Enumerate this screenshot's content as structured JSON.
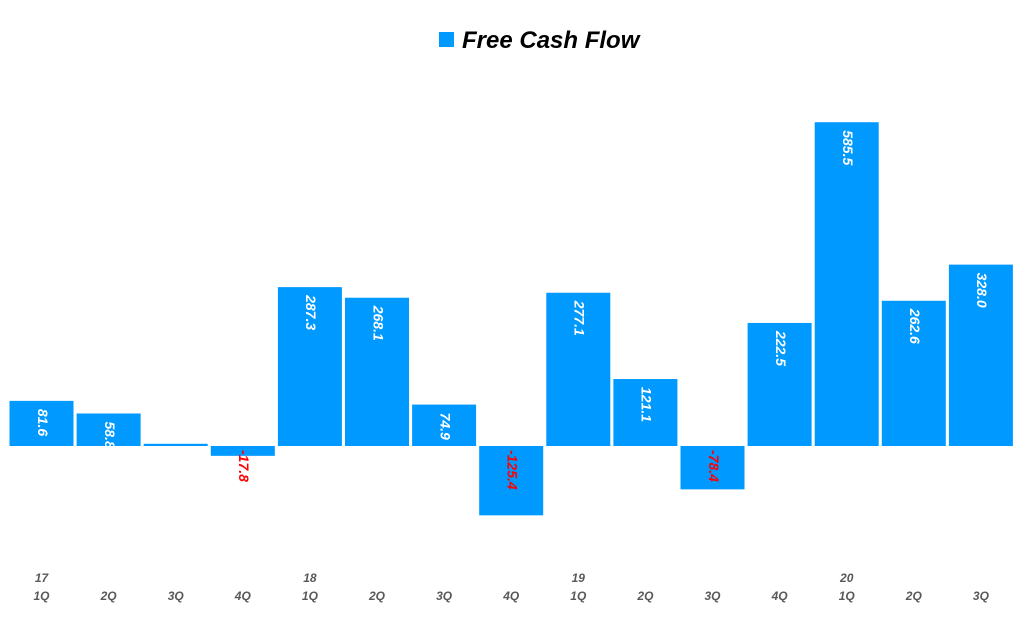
{
  "chart_data": {
    "type": "bar",
    "title": "",
    "legend": {
      "entries": [
        "Free Cash Flow"
      ],
      "placement": "top-center"
    },
    "series": [
      {
        "name": "Free Cash Flow",
        "values": [
          81.6,
          58.8,
          4,
          -17.8,
          287.3,
          268.1,
          74.9,
          -125.4,
          277.1,
          121.1,
          -78.4,
          222.5,
          585.5,
          262.6,
          328.0
        ]
      }
    ],
    "value_labels": [
      "81.6",
      "58.8",
      "4",
      "-17.8",
      "287.3",
      "268.1",
      "74.9",
      "-125.4",
      "277.1",
      "121.1",
      "-78.4",
      "222.5",
      "585.5",
      "262.6",
      "328.0"
    ],
    "categories": [
      "1Q",
      "2Q",
      "3Q",
      "4Q",
      "1Q",
      "2Q",
      "3Q",
      "4Q",
      "1Q",
      "2Q",
      "3Q",
      "4Q",
      "1Q",
      "2Q",
      "3Q"
    ],
    "year_labels": [
      "17",
      "",
      "",
      "",
      "18",
      "",
      "",
      "",
      "19",
      "",
      "",
      "",
      "20",
      "",
      ""
    ],
    "xlabel": "",
    "ylabel": "",
    "grid": false,
    "colors": {
      "bar": "#0099FF",
      "positive_label": "#FFFFFF",
      "negative_label": "#FF0000",
      "axis_label": "#595959"
    }
  }
}
